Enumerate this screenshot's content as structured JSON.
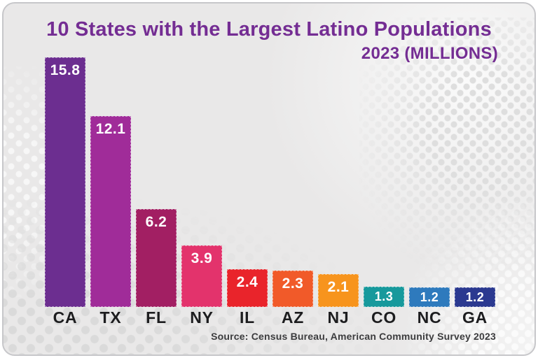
{
  "header": {
    "title": "10 States with the Largest Latino Populations",
    "subtitle": "2023 (MILLIONS)"
  },
  "footer": {
    "source": "Source: Census Bureau, American Community Survey 2023"
  },
  "colors": {
    "title": "#742d93",
    "card_background": "#e9e8e8",
    "card_border": "#c7c7ca",
    "value_label": "#ffffff",
    "state_label": "#1d1d1f",
    "source_text": "#3c3c3e"
  },
  "chart_data": {
    "type": "bar",
    "title": "10 States with the Largest Latino Populations",
    "subtitle": "2023 (MILLIONS)",
    "unit": "millions",
    "categories": [
      "CA",
      "TX",
      "FL",
      "NY",
      "IL",
      "AZ",
      "NJ",
      "CO",
      "NC",
      "GA"
    ],
    "values": [
      15.8,
      12.1,
      6.2,
      3.9,
      2.4,
      2.3,
      2.1,
      1.3,
      1.2,
      1.2
    ],
    "bar_colors": [
      "#6c2e90",
      "#a02c99",
      "#a21f63",
      "#e3336c",
      "#e9242b",
      "#f15a29",
      "#f7941d",
      "#17999c",
      "#2e7abd",
      "#2b3990"
    ],
    "value_labels": [
      "15.8",
      "12.1",
      "6.2",
      "3.9",
      "2.4",
      "2.3",
      "2.1",
      "1.3",
      "1.2",
      "1.2"
    ],
    "ylim": [
      0,
      16.5
    ],
    "grid": false,
    "legend": false,
    "value_label_position": "inside-top",
    "source": "Source: Census Bureau, American Community Survey 2023"
  }
}
